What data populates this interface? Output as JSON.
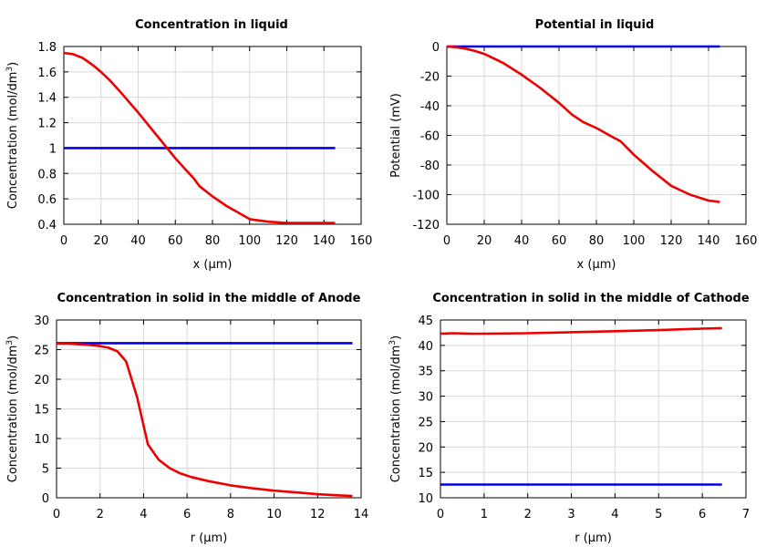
{
  "chart_data": [
    {
      "type": "line",
      "title": "Concentration in liquid",
      "xlabel": "x (µm)",
      "ylabel": "Concentration (mol/dm",
      "ylabel_sup": "3",
      "ylabel_end": ")",
      "xlim": [
        0,
        160
      ],
      "ylim": [
        0.4,
        1.8
      ],
      "xticks": [
        0,
        20,
        40,
        60,
        80,
        100,
        120,
        140,
        160
      ],
      "yticks": [
        0.4,
        0.6,
        0.8,
        1,
        1.2,
        1.4,
        1.6,
        1.8
      ],
      "grid": true,
      "series": [
        {
          "color": "#0000e0",
          "x": [
            0,
            146
          ],
          "y": [
            1.0,
            1.0
          ]
        },
        {
          "color": "#ee0000",
          "x": [
            0,
            5,
            10,
            15,
            20,
            25,
            30,
            40,
            50,
            60,
            65,
            70,
            73,
            80,
            88,
            93,
            100,
            110,
            120,
            130,
            140,
            146
          ],
          "y": [
            1.75,
            1.74,
            1.71,
            1.66,
            1.6,
            1.53,
            1.45,
            1.28,
            1.1,
            0.92,
            0.84,
            0.76,
            0.7,
            0.62,
            0.54,
            0.5,
            0.44,
            0.42,
            0.41,
            0.41,
            0.41,
            0.41
          ]
        }
      ]
    },
    {
      "type": "line",
      "title": "Potential in liquid",
      "xlabel": "x (µm)",
      "ylabel": "Potential (mV)",
      "ylabel_sup": "",
      "ylabel_end": "",
      "xlim": [
        0,
        160
      ],
      "ylim": [
        -120,
        0
      ],
      "xticks": [
        0,
        20,
        40,
        60,
        80,
        100,
        120,
        140,
        160
      ],
      "yticks": [
        -120,
        -100,
        -80,
        -60,
        -40,
        -20,
        0
      ],
      "grid": true,
      "series": [
        {
          "color": "#0000e0",
          "x": [
            0,
            146
          ],
          "y": [
            0,
            0
          ]
        },
        {
          "color": "#ee0000",
          "x": [
            0,
            5,
            10,
            15,
            20,
            30,
            40,
            50,
            60,
            67,
            73,
            80,
            87,
            93,
            100,
            110,
            120,
            130,
            140,
            146
          ],
          "y": [
            0,
            -0.5,
            -1.5,
            -3,
            -5,
            -11,
            -19,
            -28,
            -38,
            -46,
            -51,
            -55,
            -60,
            -64,
            -73,
            -84,
            -94,
            -100,
            -104,
            -105
          ]
        }
      ]
    },
    {
      "type": "line",
      "title": "Concentration in solid in the middle of Anode",
      "xlabel": "r (µm)",
      "ylabel": "Concentration (mol/dm",
      "ylabel_sup": "3",
      "ylabel_end": ")",
      "xlim": [
        0,
        14
      ],
      "ylim": [
        0,
        30
      ],
      "xticks": [
        0,
        2,
        4,
        6,
        8,
        10,
        12,
        14
      ],
      "yticks": [
        0,
        5,
        10,
        15,
        20,
        25,
        30
      ],
      "grid": true,
      "series": [
        {
          "color": "#0000e0",
          "x": [
            0,
            13.6
          ],
          "y": [
            26.1,
            26.1
          ]
        },
        {
          "color": "#ee0000",
          "x": [
            0,
            0.5,
            1,
            1.5,
            2,
            2.4,
            2.8,
            3.2,
            3.7,
            4.2,
            4.7,
            5.2,
            5.7,
            6.2,
            7,
            8,
            9,
            10,
            11,
            12,
            13,
            13.6
          ],
          "y": [
            26.0,
            26.0,
            25.9,
            25.8,
            25.6,
            25.3,
            24.7,
            23.0,
            17.0,
            9.0,
            6.4,
            5.0,
            4.1,
            3.5,
            2.8,
            2.1,
            1.6,
            1.2,
            0.9,
            0.6,
            0.4,
            0.3
          ]
        }
      ]
    },
    {
      "type": "line",
      "title": "Concentration in solid in the middle of Cathode",
      "xlabel": "r (µm)",
      "ylabel": "Concentration (mol/dm",
      "ylabel_sup": "3",
      "ylabel_end": ")",
      "xlim": [
        0,
        7
      ],
      "ylim": [
        10,
        45
      ],
      "xticks": [
        0,
        1,
        2,
        3,
        4,
        5,
        6,
        7
      ],
      "yticks": [
        10,
        15,
        20,
        25,
        30,
        35,
        40,
        45
      ],
      "grid": true,
      "series": [
        {
          "color": "#0000e0",
          "x": [
            0,
            6.45
          ],
          "y": [
            12.6,
            12.6
          ]
        },
        {
          "color": "#ee0000",
          "x": [
            0,
            0.3,
            0.7,
            1,
            2,
            3,
            4,
            5,
            6,
            6.45
          ],
          "y": [
            42.3,
            42.4,
            42.3,
            42.3,
            42.4,
            42.6,
            42.8,
            43.0,
            43.3,
            43.4
          ]
        }
      ]
    }
  ]
}
